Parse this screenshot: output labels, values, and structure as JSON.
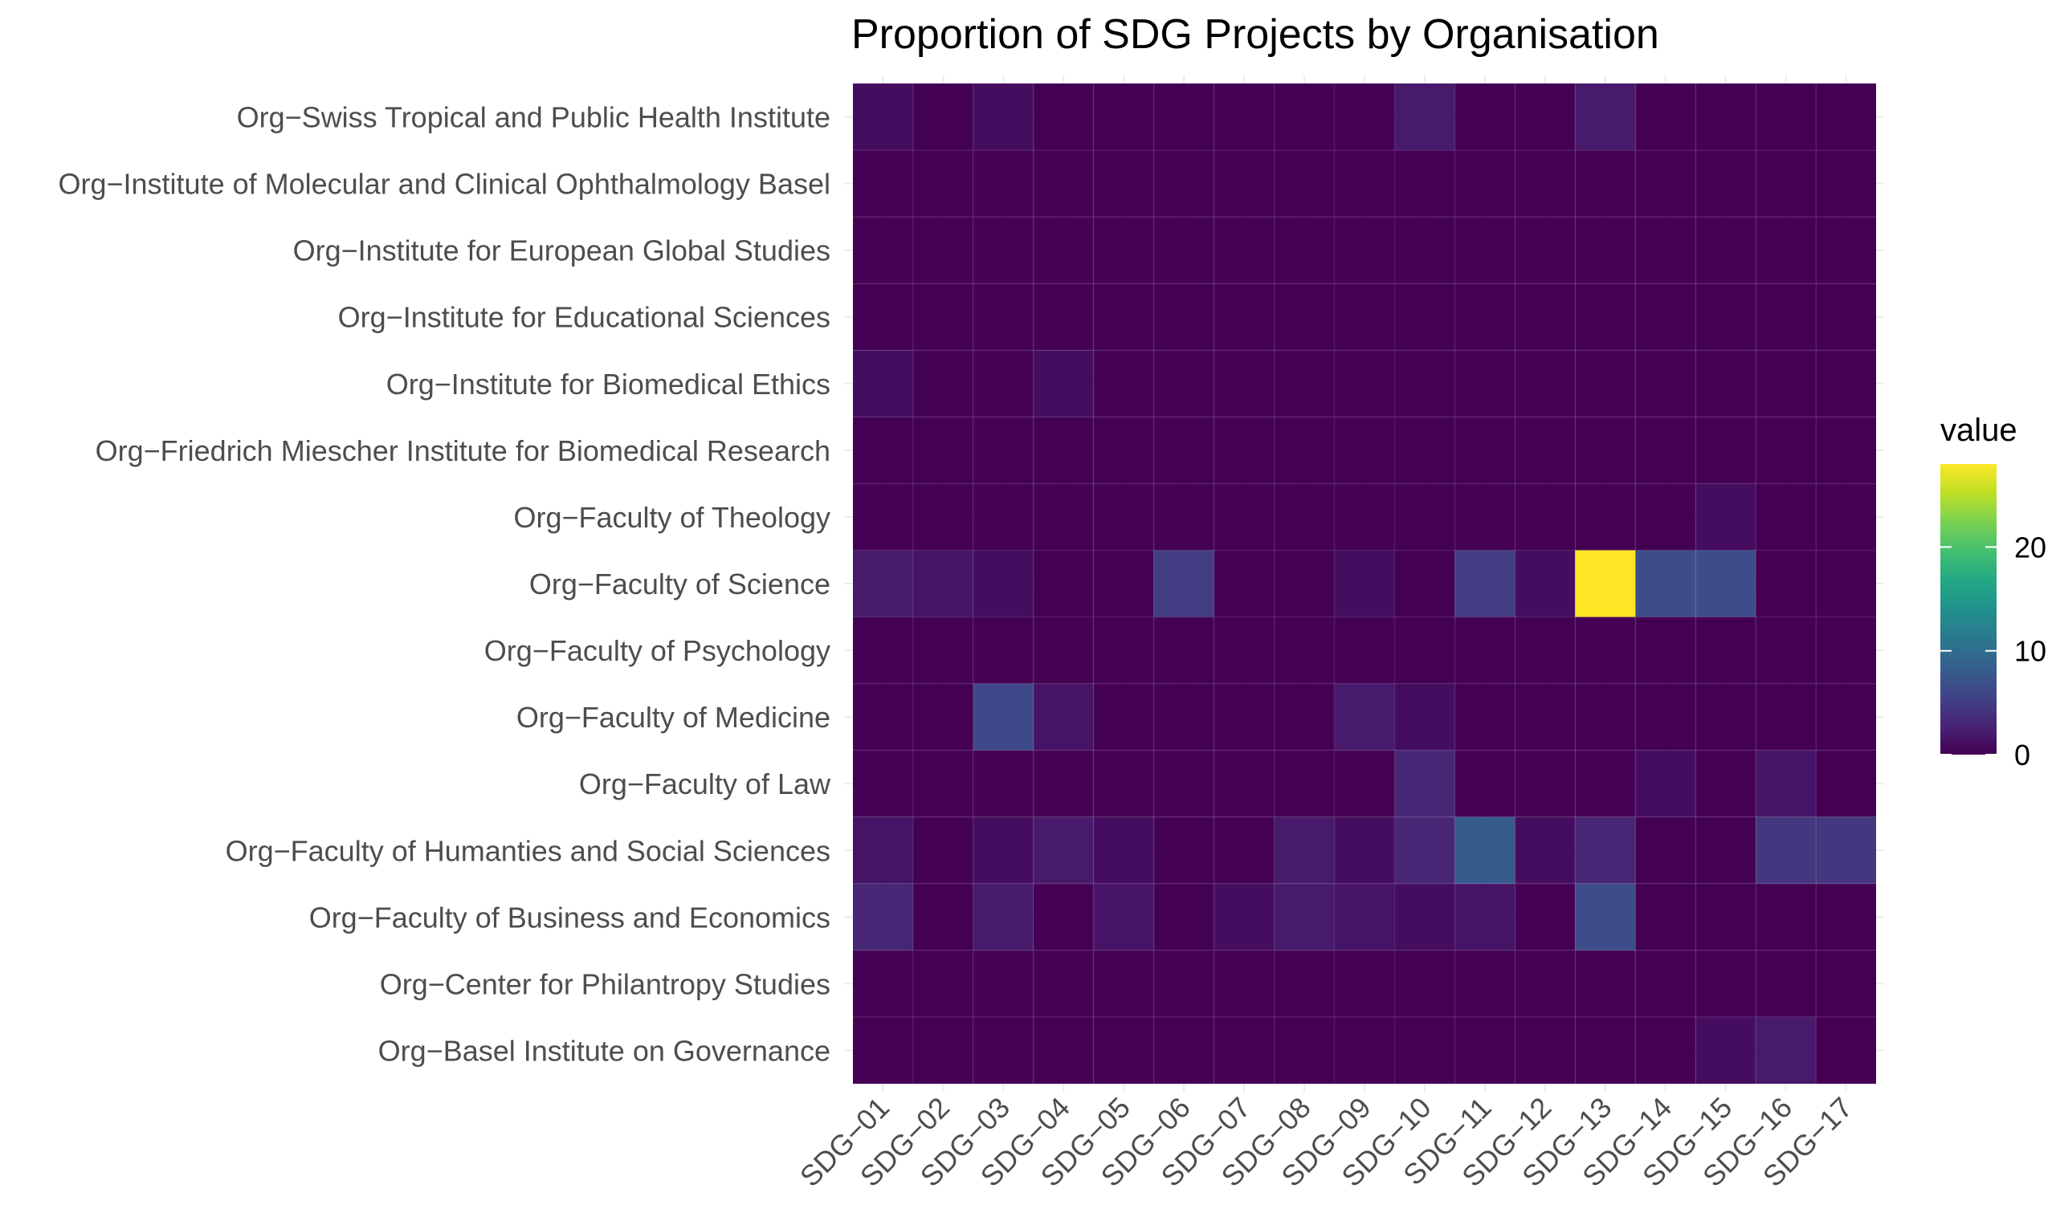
{
  "chart_data": {
    "type": "heatmap",
    "title": "Proportion of SDG Projects by Organisation",
    "xlabel": "",
    "ylabel": "",
    "x": [
      "SDG−01",
      "SDG−02",
      "SDG−03",
      "SDG−04",
      "SDG−05",
      "SDG−06",
      "SDG−07",
      "SDG−08",
      "SDG−09",
      "SDG−10",
      "SDG−11",
      "SDG−12",
      "SDG−13",
      "SDG−14",
      "SDG−15",
      "SDG−16",
      "SDG−17"
    ],
    "y": [
      "Org−Swiss Tropical and Public Health Institute",
      "Org−Institute of Molecular and Clinical Ophthalmology Basel",
      "Org−Institute for European Global Studies",
      "Org−Institute for Educational Sciences",
      "Org−Institute for Biomedical Ethics",
      "Org−Friedrich Miescher Institute for Biomedical Research",
      "Org−Faculty of Theology",
      "Org−Faculty of Science",
      "Org−Faculty of Psychology",
      "Org−Faculty of Medicine",
      "Org−Faculty of Law",
      "Org−Faculty of Humanties and Social Sciences",
      "Org−Faculty of Business and Economics",
      "Org−Center for Philantropy Studies",
      "Org−Basel Institute on Governance"
    ],
    "values": [
      [
        1,
        0,
        1,
        0,
        0,
        0,
        0,
        0,
        0,
        2,
        0,
        0,
        2,
        0,
        0,
        0,
        0
      ],
      [
        0,
        0,
        0,
        0,
        0,
        0,
        0,
        0,
        0,
        0,
        0,
        0,
        0,
        0,
        0,
        0,
        0
      ],
      [
        0,
        0,
        0,
        0,
        0,
        0,
        0,
        0,
        0,
        0,
        0,
        0,
        0,
        0,
        0,
        0,
        0
      ],
      [
        0,
        0,
        0,
        0,
        0,
        0,
        0,
        0,
        0,
        0,
        0,
        0,
        0,
        0,
        0,
        0,
        0
      ],
      [
        1,
        0,
        0,
        1,
        0,
        0,
        0,
        0,
        0,
        0,
        0,
        0,
        0,
        0,
        0,
        0,
        0
      ],
      [
        0,
        0,
        0,
        0,
        0,
        0,
        0,
        0,
        0,
        0,
        0,
        0,
        0,
        0,
        0,
        0,
        0
      ],
      [
        0,
        0,
        0,
        0,
        0,
        0,
        0,
        0,
        0,
        0,
        0,
        0,
        0,
        0,
        1,
        0,
        0
      ],
      [
        2,
        1.5,
        1,
        0,
        0,
        5,
        0,
        0,
        1,
        0,
        5,
        1,
        28,
        6.5,
        6.5,
        0,
        0
      ],
      [
        0,
        0,
        0,
        0,
        0,
        0,
        0,
        0,
        0,
        0,
        0,
        0,
        0,
        0,
        0,
        0,
        0
      ],
      [
        0,
        0,
        6,
        1.5,
        0,
        0,
        0,
        0,
        2,
        1,
        0,
        0,
        0,
        0,
        0,
        0,
        0
      ],
      [
        0,
        0,
        0,
        0,
        0,
        0,
        0,
        0,
        0,
        3,
        0,
        0,
        0,
        1,
        0,
        1.5,
        0
      ],
      [
        1.5,
        0,
        1,
        2,
        1,
        0,
        0,
        2,
        1,
        3,
        8,
        1,
        3,
        0,
        0,
        4.5,
        4.5
      ],
      [
        3,
        0,
        2,
        0,
        1.5,
        0,
        1,
        2,
        1.5,
        1,
        1.5,
        0,
        6.5,
        0,
        0,
        0,
        0
      ],
      [
        0,
        0,
        0,
        0,
        0,
        0,
        0,
        0,
        0,
        0,
        0,
        0,
        0,
        0,
        0,
        0,
        0
      ],
      [
        0,
        0,
        0,
        0,
        0,
        0,
        0,
        0,
        0,
        0,
        0,
        0,
        0,
        0,
        1,
        2,
        0
      ]
    ],
    "color_scale": "viridis",
    "value_range": [
      0,
      28
    ],
    "legend": {
      "title": "value",
      "ticks": [
        0,
        10,
        20
      ],
      "placement": "right"
    },
    "grid": true
  }
}
